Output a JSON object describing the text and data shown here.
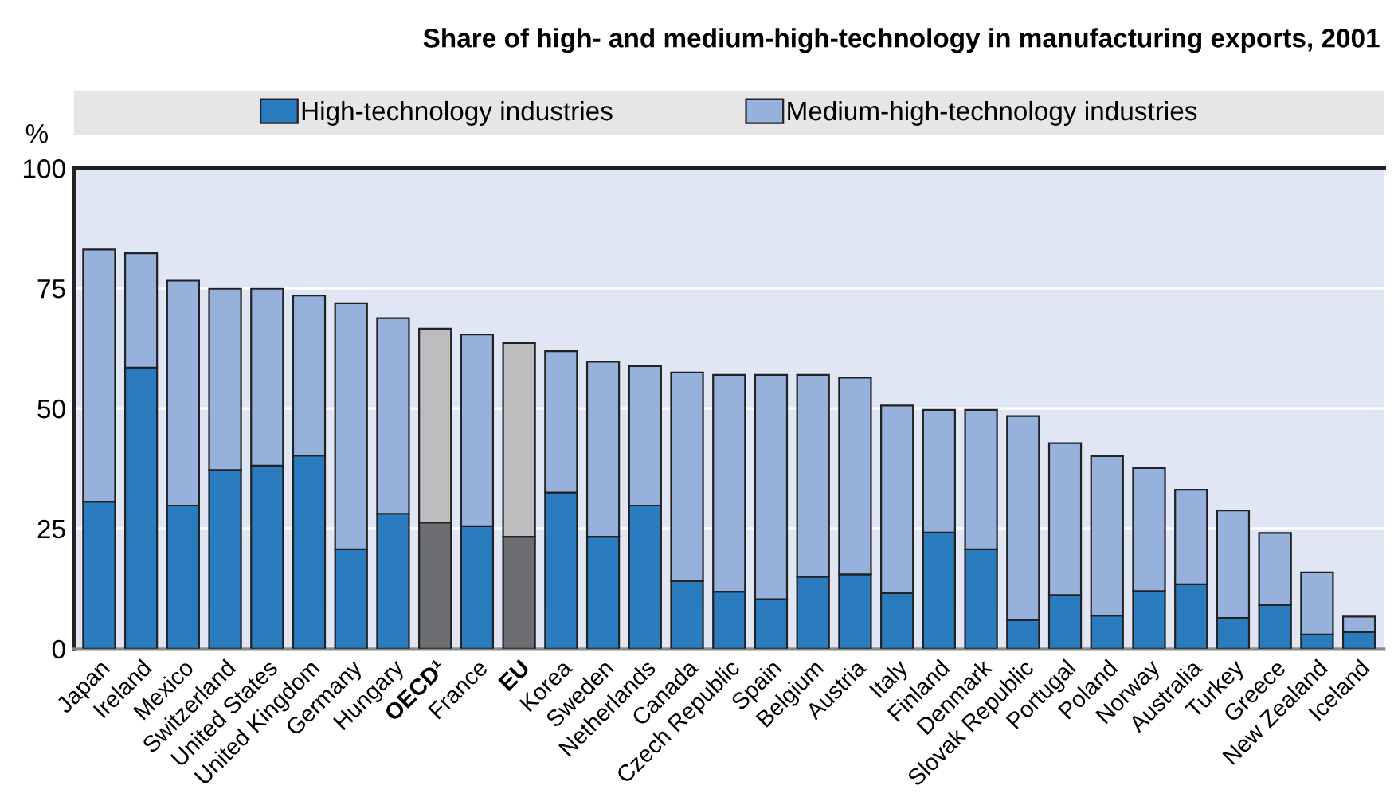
{
  "chart_data": {
    "type": "bar",
    "title": "Share of high- and medium-high-technology in manufacturing exports, 2001",
    "ylabel": "%",
    "categories": [
      "Japan",
      "Ireland",
      "Mexico",
      "Switzerland",
      "United States",
      "United Kingdom",
      "Germany",
      "Hungary",
      "OECD¹",
      "France",
      "EU",
      "Korea",
      "Sweden",
      "Netherlands",
      "Canada",
      "Czech Republic",
      "Spain",
      "Belgium",
      "Austria",
      "Italy",
      "Finland",
      "Denmark",
      "Slovak Republic",
      "Portugal",
      "Poland",
      "Norway",
      "Australia",
      "Turkey",
      "Greece",
      "New Zealand",
      "Iceland"
    ],
    "stacked": true,
    "series": [
      {
        "name": "High-technology industries",
        "color": "#2b7bbf",
        "colors": [
          "#2b7bbf",
          "#2b7bbf",
          "#2b7bbf",
          "#2b7bbf",
          "#2b7bbf",
          "#2b7bbf",
          "#2b7bbf",
          "#2b7bbf",
          "#6d6e72",
          "#2b7bbf",
          "#6d6e72",
          "#2b7bbf",
          "#2b7bbf",
          "#2b7bbf",
          "#2b7bbf",
          "#2b7bbf",
          "#2b7bbf",
          "#2b7bbf",
          "#2b7bbf",
          "#2b7bbf",
          "#2b7bbf",
          "#2b7bbf",
          "#2b7bbf",
          "#2b7bbf",
          "#2b7bbf",
          "#2b7bbf",
          "#2b7bbf",
          "#2b7bbf",
          "#2b7bbf",
          "#2b7bbf",
          "#2b7bbf"
        ],
        "values": [
          30.6,
          58.5,
          29.8,
          37.2,
          38.1,
          40.2,
          20.7,
          28.1,
          26.3,
          25.5,
          23.3,
          32.5,
          23.3,
          29.8,
          14.1,
          11.9,
          10.3,
          15.0,
          15.5,
          11.6,
          24.2,
          20.7,
          6.0,
          11.2,
          6.9,
          12.0,
          13.4,
          6.4,
          9.1,
          3.0,
          3.5
        ]
      },
      {
        "name": "Medium-high-technology industries",
        "color": "#95b1dc",
        "colors": [
          "#95b1dc",
          "#95b1dc",
          "#95b1dc",
          "#95b1dc",
          "#95b1dc",
          "#95b1dc",
          "#95b1dc",
          "#95b1dc",
          "#bdbdbf",
          "#95b1dc",
          "#bdbdbf",
          "#95b1dc",
          "#95b1dc",
          "#95b1dc",
          "#95b1dc",
          "#95b1dc",
          "#95b1dc",
          "#95b1dc",
          "#95b1dc",
          "#95b1dc",
          "#95b1dc",
          "#95b1dc",
          "#95b1dc",
          "#95b1dc",
          "#95b1dc",
          "#95b1dc",
          "#95b1dc",
          "#95b1dc",
          "#95b1dc",
          "#95b1dc",
          "#95b1dc"
        ],
        "values": [
          52.5,
          23.8,
          46.8,
          37.7,
          36.8,
          33.3,
          51.2,
          40.7,
          40.3,
          39.9,
          40.3,
          29.4,
          36.4,
          29.0,
          43.4,
          45.1,
          46.7,
          42.0,
          40.9,
          39.0,
          25.5,
          29.0,
          42.4,
          31.6,
          33.2,
          25.6,
          19.7,
          22.4,
          15.0,
          12.9,
          3.2
        ]
      }
    ],
    "ylim": [
      0,
      100
    ],
    "yticks": [
      0,
      25,
      50,
      75,
      100
    ],
    "grid": "y",
    "legend": "top"
  }
}
